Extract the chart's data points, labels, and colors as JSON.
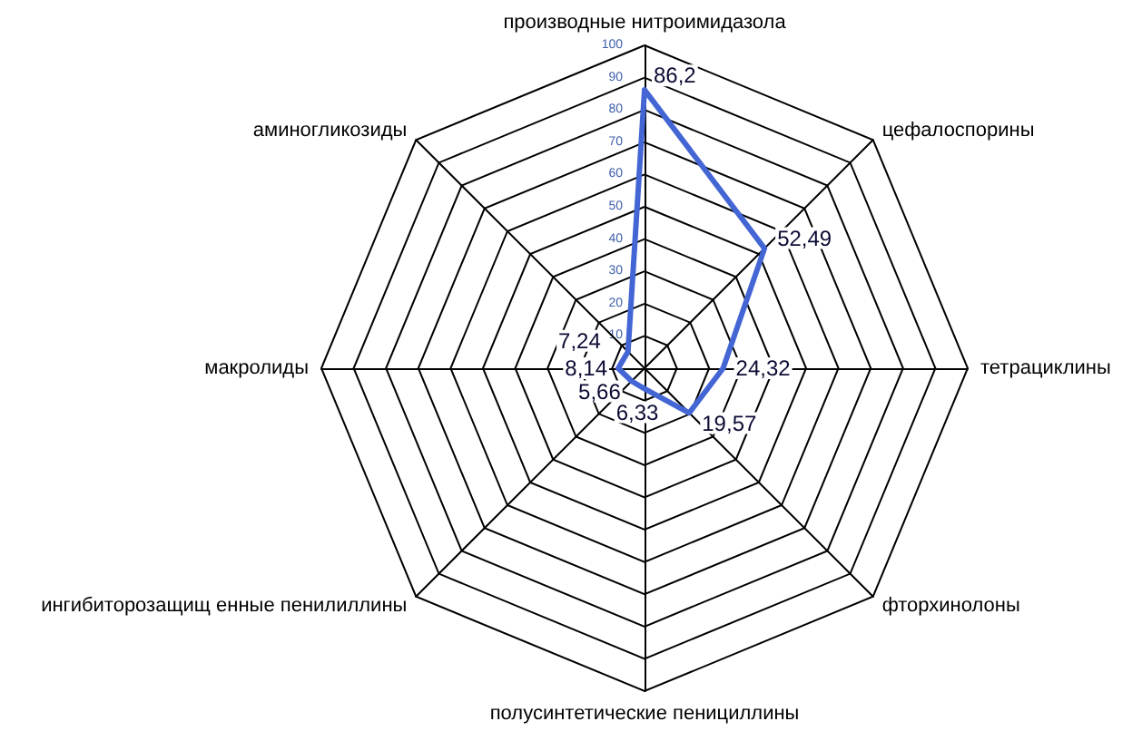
{
  "chart_data": {
    "type": "radar",
    "categories": [
      "производные нитроимидазола",
      "цефалоспорины",
      "тетрациклины",
      "фторхинолоны",
      "полусинтетические пенициллины",
      "ингибиторозащищ енные пенилиллины",
      "макролиды",
      "аминогликозиды"
    ],
    "series": [
      {
        "color": "#4466d4",
        "values": [
          86.2,
          52.49,
          24.32,
          19.57,
          6.33,
          5.66,
          8.14,
          7.24
        ],
        "value_labels": [
          "86,2",
          "52,49",
          "24,32",
          "19,57",
          "6,33",
          "5,66",
          "8,14",
          "7,24"
        ]
      }
    ],
    "ylim": [
      0,
      100
    ],
    "yticks": [
      10,
      20,
      30,
      40,
      50,
      60,
      70,
      80,
      90,
      100
    ],
    "grid": true,
    "marker": "none",
    "line_style": "solid"
  }
}
